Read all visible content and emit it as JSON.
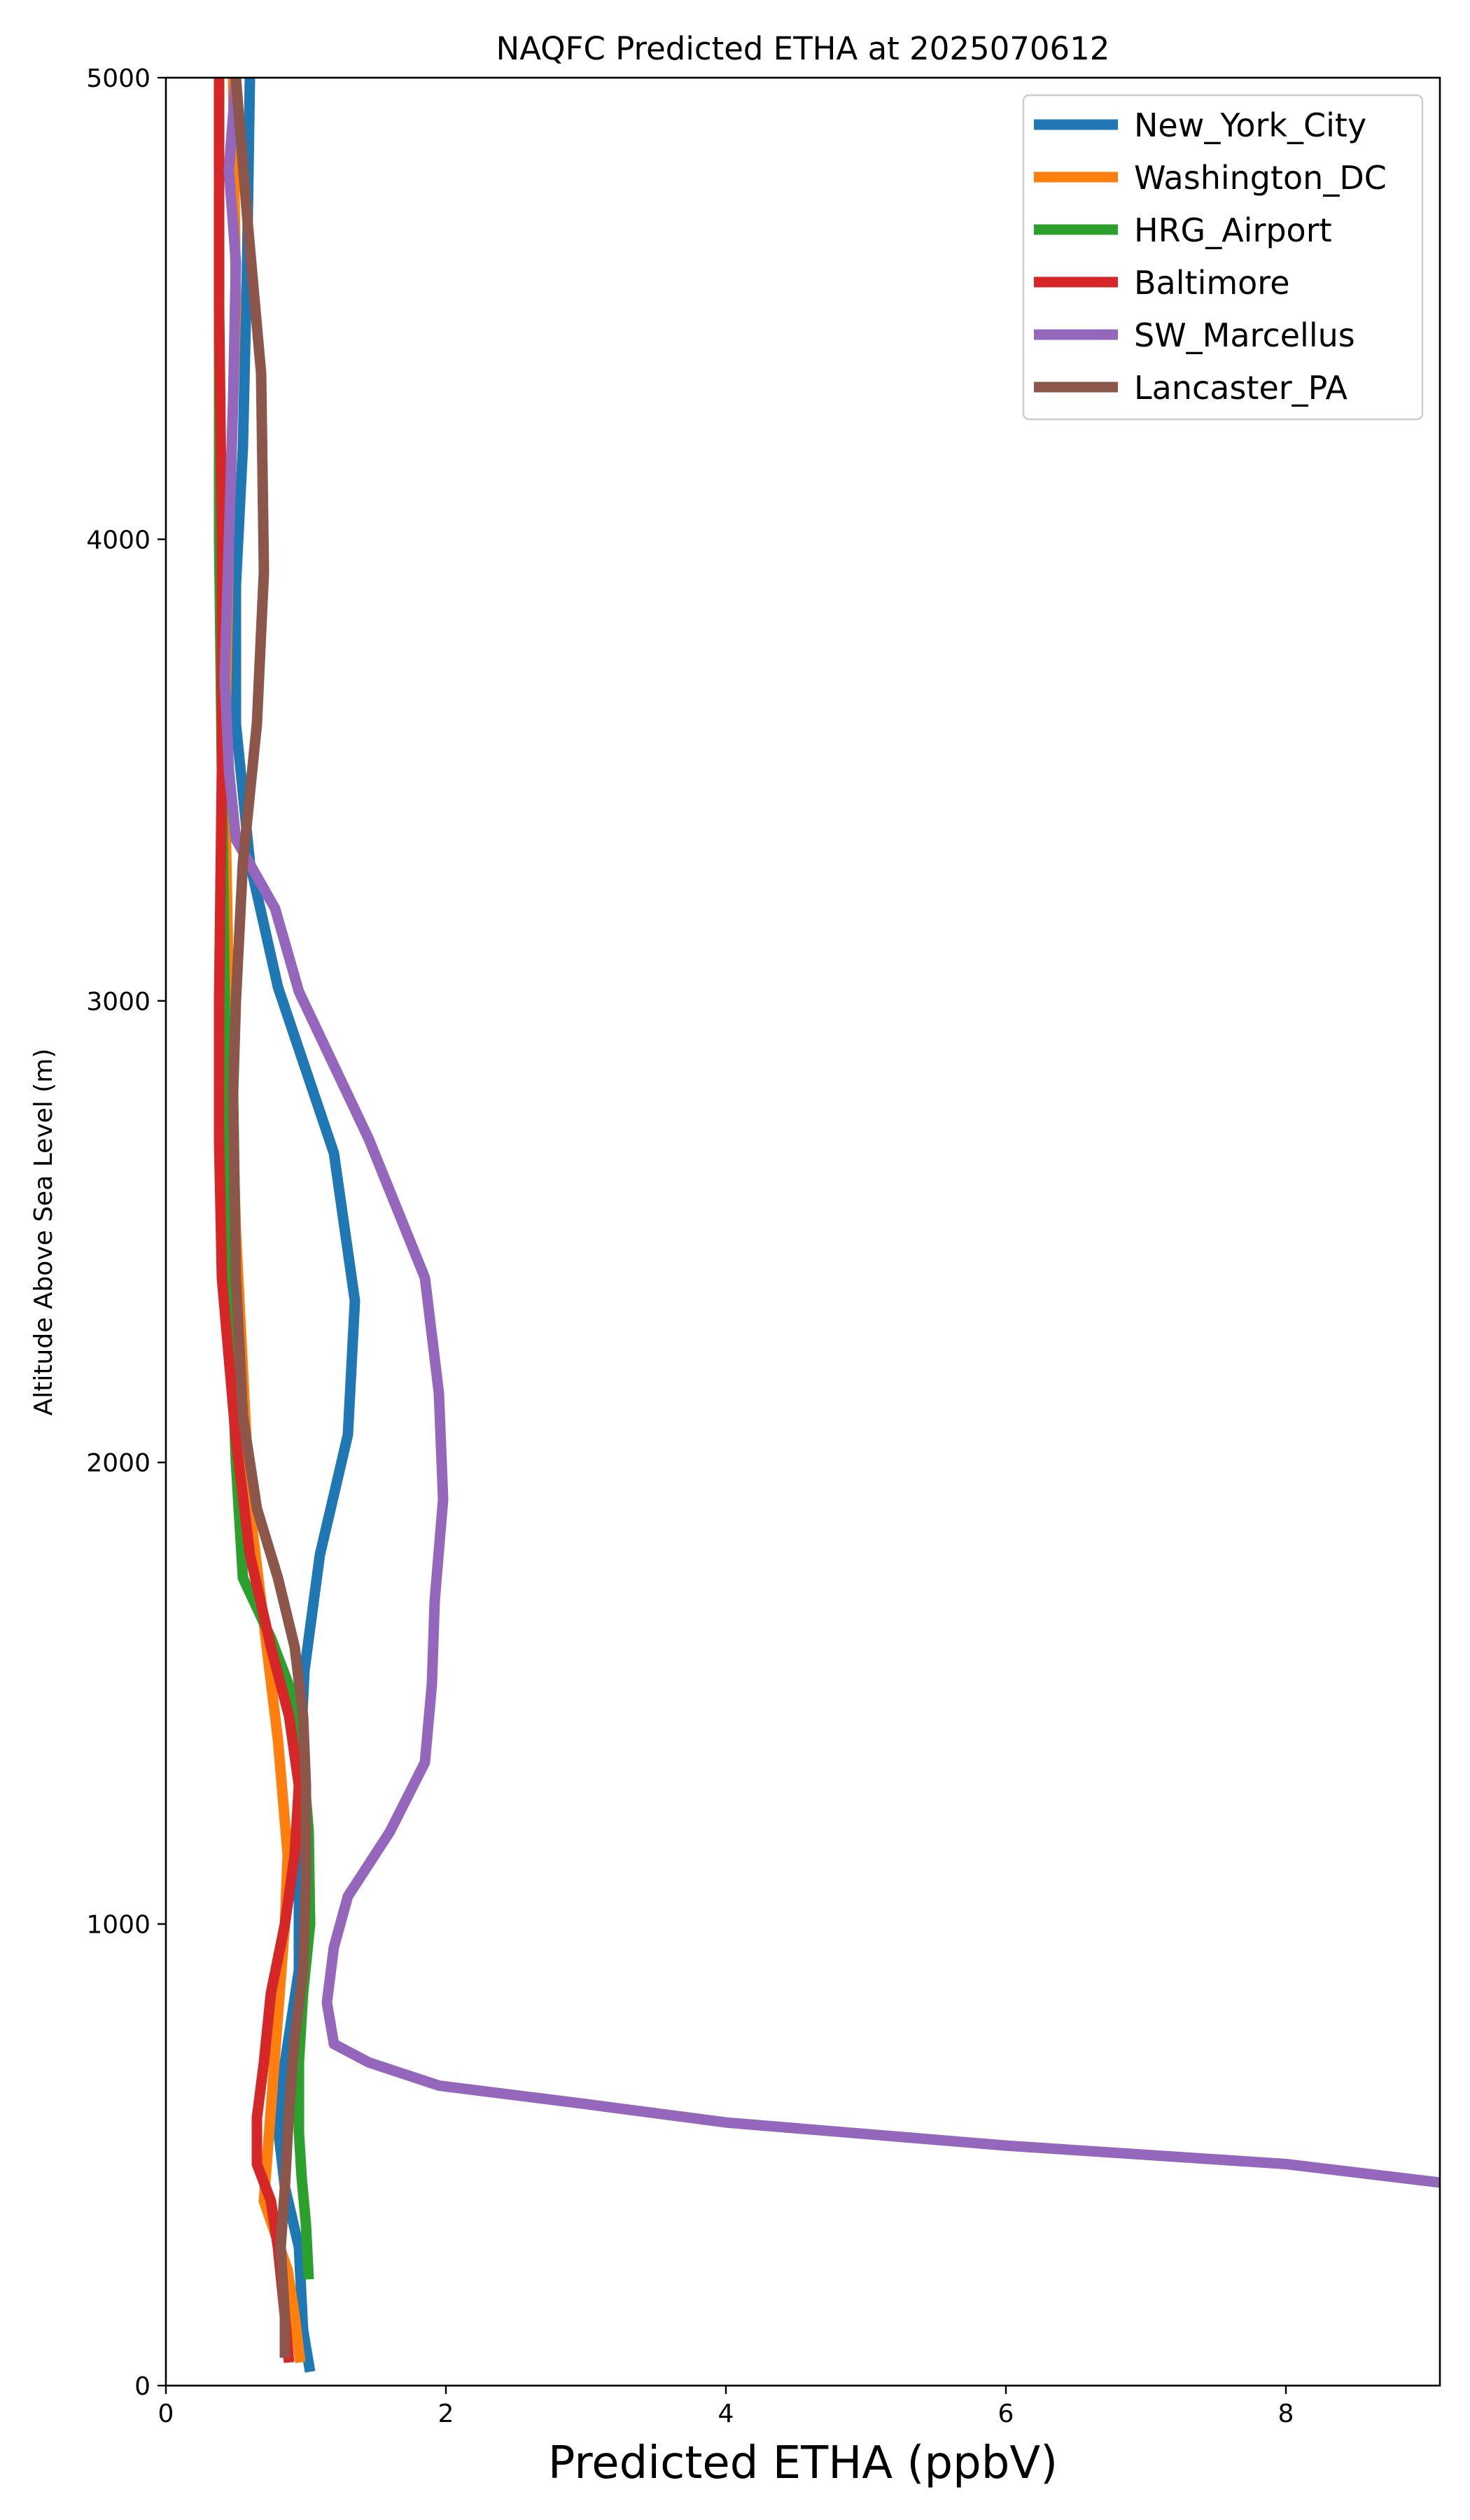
{
  "chart_data": {
    "type": "line",
    "title": "NAQFC Predicted ETHA at 2025070612",
    "xlabel": "Predicted ETHA (ppbV)",
    "ylabel": "Altitude Above Sea Level (m)",
    "xlim": [
      0,
      9.1
    ],
    "ylim": [
      0,
      5000
    ],
    "xticks": [
      0,
      2,
      4,
      6,
      8
    ],
    "yticks": [
      0,
      1000,
      2000,
      3000,
      4000,
      5000
    ],
    "xtick_labels": [
      "0",
      "2",
      "4",
      "6",
      "8"
    ],
    "ytick_labels": [
      "0",
      "1000",
      "2000",
      "3000",
      "4000",
      "5000"
    ],
    "grid": false,
    "legend_position": "top-right",
    "series": [
      {
        "name": "New_York_City",
        "color": "#1f77b4",
        "points": [
          [
            1.03,
            30
          ],
          [
            0.98,
            120
          ],
          [
            0.95,
            300
          ],
          [
            0.85,
            430
          ],
          [
            0.8,
            560
          ],
          [
            0.85,
            700
          ],
          [
            0.95,
            900
          ],
          [
            0.95,
            1100
          ],
          [
            0.95,
            1300
          ],
          [
            0.99,
            1550
          ],
          [
            1.1,
            1800
          ],
          [
            1.3,
            2060
          ],
          [
            1.35,
            2350
          ],
          [
            1.2,
            2670
          ],
          [
            0.8,
            3030
          ],
          [
            0.6,
            3300
          ],
          [
            0.5,
            3600
          ],
          [
            0.5,
            3900
          ],
          [
            0.55,
            4200
          ],
          [
            0.58,
            4600
          ],
          [
            0.6,
            5000
          ]
        ]
      },
      {
        "name": "Washington_DC",
        "color": "#ff7f0e",
        "points": [
          [
            0.96,
            50
          ],
          [
            0.92,
            150
          ],
          [
            0.87,
            250
          ],
          [
            0.7,
            400
          ],
          [
            0.75,
            600
          ],
          [
            0.8,
            800
          ],
          [
            0.85,
            1000
          ],
          [
            0.87,
            1150
          ],
          [
            0.8,
            1400
          ],
          [
            0.7,
            1650
          ],
          [
            0.6,
            1900
          ],
          [
            0.55,
            2200
          ],
          [
            0.5,
            2500
          ],
          [
            0.45,
            3000
          ],
          [
            0.42,
            3500
          ],
          [
            0.45,
            4000
          ],
          [
            0.5,
            4500
          ],
          [
            0.48,
            5000
          ]
        ]
      },
      {
        "name": "HRG_Airport",
        "color": "#2ca02c",
        "points": [
          [
            1.02,
            230
          ],
          [
            1.0,
            350
          ],
          [
            0.97,
            450
          ],
          [
            0.95,
            550
          ],
          [
            0.95,
            700
          ],
          [
            0.98,
            850
          ],
          [
            1.03,
            1000
          ],
          [
            1.02,
            1200
          ],
          [
            0.98,
            1350
          ],
          [
            0.9,
            1500
          ],
          [
            0.75,
            1620
          ],
          [
            0.55,
            1750
          ],
          [
            0.5,
            2000
          ],
          [
            0.45,
            2400
          ],
          [
            0.42,
            3000
          ],
          [
            0.4,
            3500
          ],
          [
            0.38,
            4000
          ],
          [
            0.38,
            4500
          ],
          [
            0.38,
            5000
          ]
        ]
      },
      {
        "name": "Baltimore",
        "color": "#d62728",
        "points": [
          [
            0.88,
            50
          ],
          [
            0.85,
            150
          ],
          [
            0.8,
            300
          ],
          [
            0.75,
            400
          ],
          [
            0.65,
            480
          ],
          [
            0.65,
            580
          ],
          [
            0.7,
            700
          ],
          [
            0.75,
            850
          ],
          [
            0.85,
            1000
          ],
          [
            0.92,
            1150
          ],
          [
            0.95,
            1300
          ],
          [
            0.88,
            1450
          ],
          [
            0.75,
            1600
          ],
          [
            0.6,
            1800
          ],
          [
            0.5,
            2050
          ],
          [
            0.4,
            2400
          ],
          [
            0.38,
            2700
          ],
          [
            0.38,
            3000
          ],
          [
            0.4,
            3500
          ],
          [
            0.4,
            4000
          ],
          [
            0.38,
            4500
          ],
          [
            0.38,
            5000
          ]
        ]
      },
      {
        "name": "SW_Marcellus",
        "color": "#9467bd",
        "points": [
          [
            9.1,
            440
          ],
          [
            8.0,
            480
          ],
          [
            6.0,
            520
          ],
          [
            4.0,
            570
          ],
          [
            3.0,
            610
          ],
          [
            1.95,
            650
          ],
          [
            1.45,
            700
          ],
          [
            1.2,
            740
          ],
          [
            1.15,
            830
          ],
          [
            1.2,
            950
          ],
          [
            1.3,
            1060
          ],
          [
            1.6,
            1200
          ],
          [
            1.85,
            1350
          ],
          [
            1.9,
            1520
          ],
          [
            1.92,
            1700
          ],
          [
            1.98,
            1920
          ],
          [
            1.95,
            2150
          ],
          [
            1.85,
            2400
          ],
          [
            1.45,
            2700
          ],
          [
            1.2,
            2860
          ],
          [
            0.95,
            3020
          ],
          [
            0.78,
            3200
          ],
          [
            0.5,
            3350
          ],
          [
            0.45,
            3500
          ],
          [
            0.42,
            3700
          ],
          [
            0.45,
            4000
          ],
          [
            0.48,
            4300
          ],
          [
            0.5,
            4600
          ],
          [
            0.45,
            4800
          ],
          [
            0.5,
            5000
          ]
        ]
      },
      {
        "name": "Lancaster_PA",
        "color": "#8c564b",
        "points": [
          [
            0.85,
            60
          ],
          [
            0.85,
            150
          ],
          [
            0.82,
            300
          ],
          [
            0.85,
            430
          ],
          [
            0.88,
            600
          ],
          [
            0.92,
            750
          ],
          [
            0.98,
            900
          ],
          [
            1.0,
            1100
          ],
          [
            1.0,
            1300
          ],
          [
            0.98,
            1450
          ],
          [
            0.92,
            1600
          ],
          [
            0.8,
            1750
          ],
          [
            0.65,
            1900
          ],
          [
            0.55,
            2100
          ],
          [
            0.5,
            2400
          ],
          [
            0.48,
            2800
          ],
          [
            0.5,
            3000
          ],
          [
            0.55,
            3300
          ],
          [
            0.65,
            3600
          ],
          [
            0.7,
            3930
          ],
          [
            0.68,
            4360
          ],
          [
            0.58,
            4700
          ],
          [
            0.5,
            5000
          ]
        ]
      }
    ]
  }
}
